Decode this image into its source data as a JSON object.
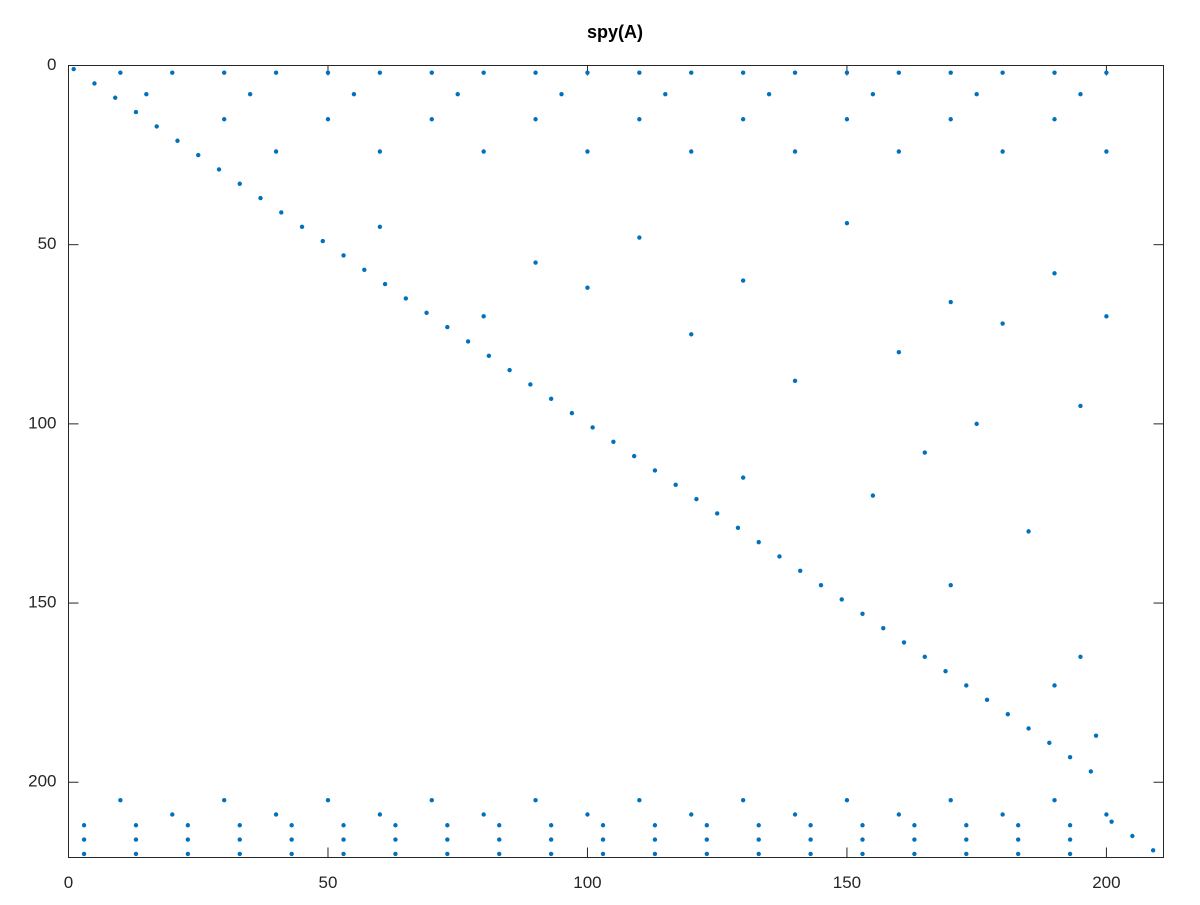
{
  "chart_data": {
    "type": "scatter",
    "title": "spy(A)",
    "color": "#0072bd",
    "xlim": [
      0,
      211
    ],
    "xticks": [
      0,
      50,
      100,
      150,
      200
    ],
    "ylim": [
      0,
      221
    ],
    "yticks": [
      0,
      50,
      100,
      150,
      200
    ],
    "y_reversed": true,
    "x": [
      1,
      5,
      9,
      13,
      17,
      21,
      25,
      29,
      33,
      37,
      41,
      45,
      49,
      53,
      57,
      61,
      65,
      69,
      73,
      77,
      81,
      85,
      89,
      93,
      97,
      101,
      105,
      109,
      113,
      117,
      121,
      125,
      129,
      133,
      137,
      141,
      145,
      149,
      153,
      157,
      161,
      165,
      169,
      173,
      177,
      181,
      185,
      189,
      193,
      197,
      201,
      205,
      209,
      10,
      20,
      30,
      40,
      50,
      60,
      70,
      80,
      90,
      100,
      110,
      120,
      130,
      140,
      150,
      160,
      170,
      180,
      190,
      200,
      15,
      35,
      55,
      75,
      95,
      115,
      135,
      155,
      175,
      195,
      30,
      50,
      70,
      90,
      110,
      130,
      150,
      170,
      190,
      40,
      60,
      80,
      100,
      120,
      140,
      160,
      180,
      200,
      60,
      90,
      110,
      130,
      150,
      170,
      190,
      200,
      120,
      160,
      180,
      140,
      100,
      80,
      195,
      175,
      155,
      185,
      170,
      195,
      198,
      190,
      165,
      130,
      10,
      30,
      50,
      70,
      90,
      110,
      130,
      150,
      170,
      190,
      20,
      40,
      60,
      80,
      100,
      120,
      140,
      160,
      180,
      200,
      3,
      13,
      23,
      33,
      43,
      53,
      63,
      73,
      83,
      93,
      103,
      113,
      123,
      133,
      143,
      153,
      163,
      173,
      183,
      193,
      3,
      13,
      23,
      33,
      43,
      53,
      63,
      73,
      83,
      93,
      103,
      113,
      123,
      133,
      143,
      153,
      163,
      173,
      183,
      193,
      3,
      13,
      23,
      33,
      43,
      53,
      63,
      73,
      83,
      93,
      103,
      113,
      123,
      133,
      143,
      153,
      163,
      173,
      183,
      193
    ],
    "y": [
      1,
      5,
      9,
      13,
      17,
      21,
      25,
      29,
      33,
      37,
      41,
      45,
      49,
      53,
      57,
      61,
      65,
      69,
      73,
      77,
      81,
      85,
      89,
      93,
      97,
      101,
      105,
      109,
      113,
      117,
      121,
      125,
      129,
      133,
      137,
      141,
      145,
      149,
      153,
      157,
      161,
      165,
      169,
      173,
      177,
      181,
      185,
      189,
      193,
      197,
      211,
      215,
      219,
      2,
      2,
      2,
      2,
      2,
      2,
      2,
      2,
      2,
      2,
      2,
      2,
      2,
      2,
      2,
      2,
      2,
      2,
      2,
      2,
      8,
      8,
      8,
      8,
      8,
      8,
      8,
      8,
      8,
      8,
      15,
      15,
      15,
      15,
      15,
      15,
      15,
      15,
      15,
      24,
      24,
      24,
      24,
      24,
      24,
      24,
      24,
      24,
      45,
      55,
      48,
      60,
      44,
      66,
      58,
      70,
      75,
      80,
      72,
      88,
      62,
      70,
      95,
      100,
      120,
      130,
      145,
      165,
      187,
      173,
      108,
      115,
      205,
      205,
      205,
      205,
      205,
      205,
      205,
      205,
      205,
      205,
      209,
      209,
      209,
      209,
      209,
      209,
      209,
      209,
      209,
      209,
      212,
      212,
      212,
      212,
      212,
      212,
      212,
      212,
      212,
      212,
      212,
      212,
      212,
      212,
      212,
      212,
      212,
      212,
      212,
      212,
      216,
      216,
      216,
      216,
      216,
      216,
      216,
      216,
      216,
      216,
      216,
      216,
      216,
      216,
      216,
      216,
      216,
      216,
      216,
      216,
      220,
      220,
      220,
      220,
      220,
      220,
      220,
      220,
      220,
      220,
      220,
      220,
      220,
      220,
      220,
      220,
      220,
      220,
      220,
      220
    ]
  }
}
